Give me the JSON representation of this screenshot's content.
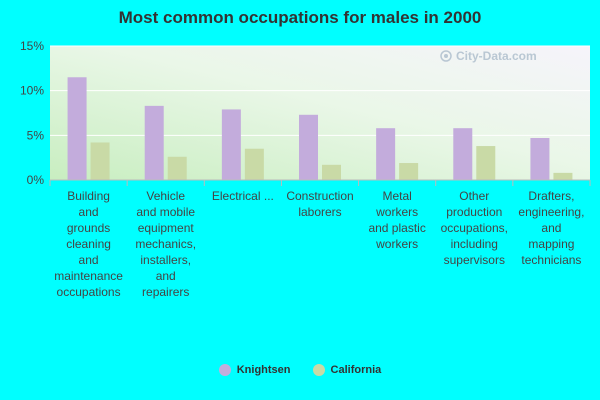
{
  "chart_data": {
    "type": "bar",
    "title": "Most common occupations for males in 2000",
    "categories": [
      "Building and grounds cleaning and maintenance occupations",
      "Vehicle and mobile equipment mechanics, installers, and repairers",
      "Electrical ...",
      "Construction laborers",
      "Metal workers and plastic workers",
      "Other production occupations, including supervisors",
      "Drafters, engineering, and mapping technicians"
    ],
    "category_label_lines": [
      [
        "Building",
        "and",
        "grounds",
        "cleaning",
        "and",
        "maintenance",
        "occupations"
      ],
      [
        "Vehicle",
        "and mobile",
        "equipment",
        "mechanics,",
        "installers,",
        "and",
        "repairers"
      ],
      [
        "Electrical ..."
      ],
      [
        "Construction",
        "laborers"
      ],
      [
        "Metal",
        "workers",
        "and plastic",
        "workers"
      ],
      [
        "Other",
        "production",
        "occupations,",
        "including",
        "supervisors"
      ],
      [
        "Drafters,",
        "engineering,",
        "and",
        "mapping",
        "technicians"
      ]
    ],
    "series": [
      {
        "name": "Knightsen",
        "color": "#c3acdc",
        "values": [
          11.5,
          8.3,
          7.9,
          7.3,
          5.8,
          5.8,
          4.7
        ]
      },
      {
        "name": "California",
        "color": "#c9daa6",
        "values": [
          4.2,
          2.6,
          3.5,
          1.7,
          1.9,
          3.8,
          0.8
        ]
      }
    ],
    "ylim": [
      0,
      15
    ],
    "yticks": [
      0,
      5,
      10,
      15
    ],
    "ytick_labels": [
      "0%",
      "5%",
      "10%",
      "15%"
    ],
    "grid": true,
    "legend_position": "bottom-center",
    "watermark": "City-Data.com"
  }
}
